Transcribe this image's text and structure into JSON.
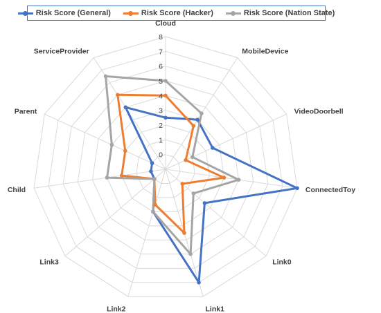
{
  "chart_data": {
    "type": "radar",
    "categories": [
      "Cloud",
      "MobileDevice",
      "VideoDoorbell",
      "ConnectedToy",
      "Link0",
      "Link1",
      "Link2",
      "Link3",
      "Child",
      "Parent",
      "ServiceProvider"
    ],
    "ticks": [
      0,
      1,
      2,
      3,
      4,
      5,
      6,
      7,
      8
    ],
    "rmin": -1,
    "rmax": 8,
    "grid": true,
    "legend_position": "top",
    "series": [
      {
        "name": "Risk Score (General)",
        "color": "#4472c4",
        "values": [
          2.5,
          3.0,
          2.5,
          8.0,
          2.5,
          7.0,
          2.0,
          0.0,
          0.0,
          0.0,
          4.0
        ]
      },
      {
        "name": "Risk Score (Hacker)",
        "color": "#ed7d31",
        "values": [
          4.0,
          2.5,
          0.5,
          3.0,
          0.5,
          3.5,
          1.5,
          0.0,
          2.0,
          2.0,
          5.0
        ]
      },
      {
        "name": "Risk Score (Nation State)",
        "color": "#a5a5a5",
        "values": [
          5.0,
          3.5,
          1.0,
          4.0,
          1.5,
          5.0,
          2.0,
          0.0,
          3.0,
          3.0,
          6.5
        ]
      }
    ]
  }
}
